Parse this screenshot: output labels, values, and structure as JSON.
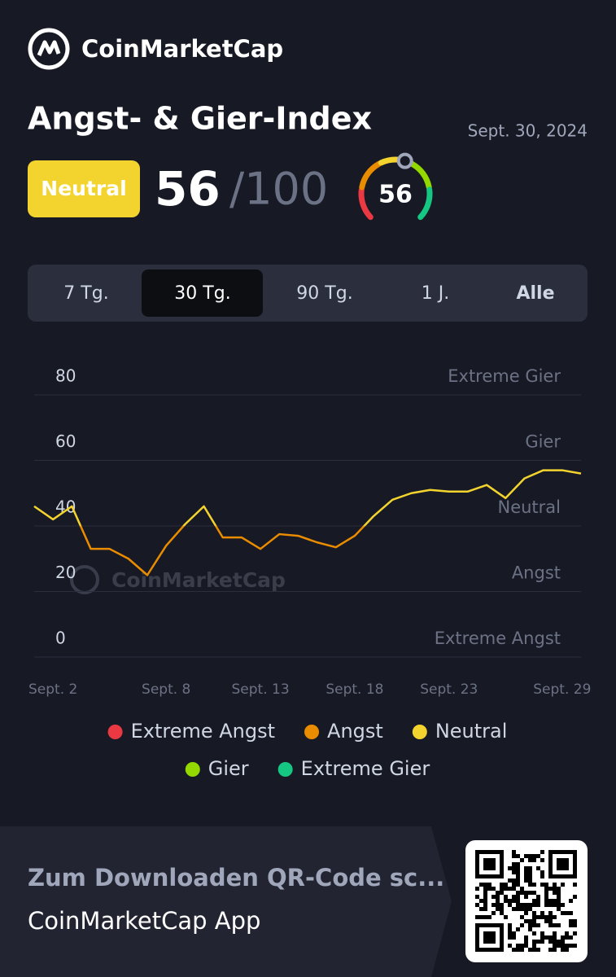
{
  "brand": "CoinMarketCap",
  "header": {
    "title": "Angst- & Gier-Index",
    "date": "Sept. 30, 2024",
    "badge": "Neutral",
    "badge_color": "#f3d42f",
    "value": 56,
    "max": "/100"
  },
  "tabs": {
    "items": [
      "7 Tg.",
      "30 Tg.",
      "90 Tg.",
      "1 J.",
      "Alle"
    ],
    "selected": 1
  },
  "chart_data": {
    "type": "line",
    "watermark": "CoinMarketCap",
    "categories": [
      null,
      "Sept. 2",
      null,
      null,
      null,
      null,
      null,
      "Sept. 8",
      null,
      null,
      null,
      null,
      "Sept. 13",
      null,
      null,
      null,
      null,
      "Sept. 18",
      null,
      null,
      null,
      null,
      "Sept. 23",
      null,
      null,
      null,
      null,
      null,
      "Sept. 29",
      null
    ],
    "series": [
      {
        "values": [
          46,
          42,
          46,
          33,
          33,
          30,
          25,
          34,
          40.5,
          46,
          36.5,
          36.5,
          33,
          37.5,
          37,
          35,
          33.5,
          37,
          43,
          48,
          50,
          51,
          50.5,
          50.5,
          52.5,
          48.5,
          54.5,
          57,
          57,
          56
        ]
      }
    ],
    "ylim": [
      0,
      80
    ],
    "yticks": [
      0,
      20,
      40,
      60,
      80
    ],
    "zones": [
      "Extreme Angst",
      "Angst",
      "Neutral",
      "Gier",
      "Extreme Gier"
    ],
    "grid": true,
    "legend": [
      {
        "name": "Extreme Angst",
        "color": "#ea3943"
      },
      {
        "name": "Angst",
        "color": "#ea8c00"
      },
      {
        "name": "Neutral",
        "color": "#f3d42f"
      },
      {
        "name": "Gier",
        "color": "#93d900"
      },
      {
        "name": "Extreme Gier",
        "color": "#16c784"
      }
    ]
  },
  "banner": {
    "text": "Zum Downloaden QR-Code sc...",
    "app": "CoinMarketCap App"
  }
}
